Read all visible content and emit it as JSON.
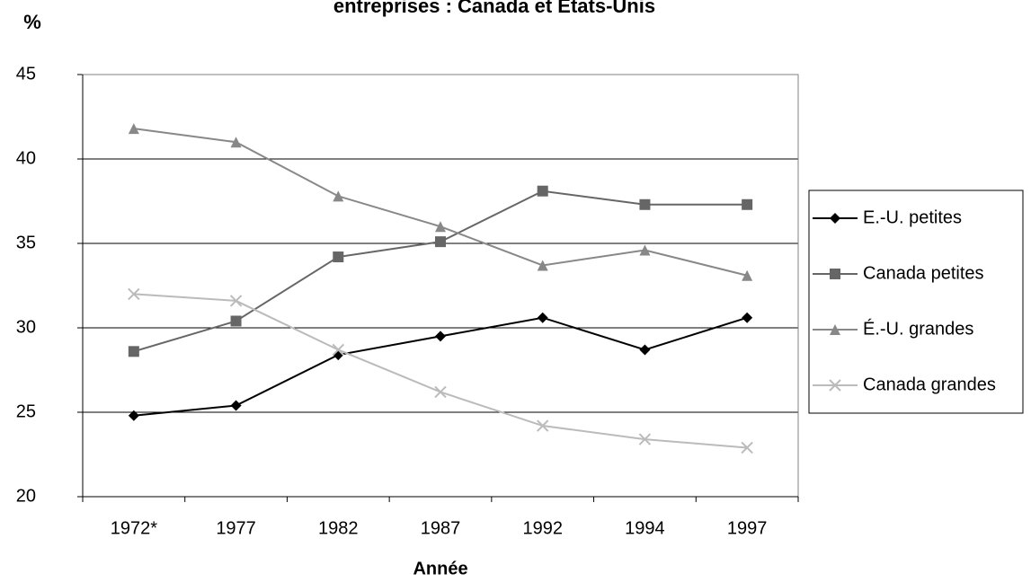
{
  "chart_data": {
    "type": "line",
    "title": "entreprises : Canada et États-Unis",
    "y_label": "%",
    "x_label": "Année",
    "categories": [
      "1972*",
      "1977",
      "1982",
      "1987",
      "1992",
      "1994",
      "1997"
    ],
    "series": [
      {
        "name": "E.-U. petites",
        "color": "#000000",
        "marker": "diamond",
        "values": [
          24.8,
          25.4,
          28.4,
          29.5,
          30.6,
          28.7,
          30.6
        ]
      },
      {
        "name": "Canada petites",
        "color": "#666666",
        "marker": "square",
        "values": [
          28.6,
          30.4,
          34.2,
          35.1,
          38.1,
          37.3,
          37.3
        ]
      },
      {
        "name": "É.-U. grandes",
        "color": "#888888",
        "marker": "triangle",
        "values": [
          41.8,
          41.0,
          37.8,
          36.0,
          33.7,
          34.6,
          33.1
        ]
      },
      {
        "name": "Canada grandes",
        "color": "#bbbbbb",
        "marker": "x",
        "values": [
          32.0,
          31.6,
          28.7,
          26.2,
          24.2,
          23.4,
          22.9
        ]
      }
    ],
    "ylim": [
      20,
      45
    ],
    "yticks": [
      20,
      25,
      30,
      35,
      40,
      45
    ],
    "grid": true,
    "legend": "right"
  }
}
